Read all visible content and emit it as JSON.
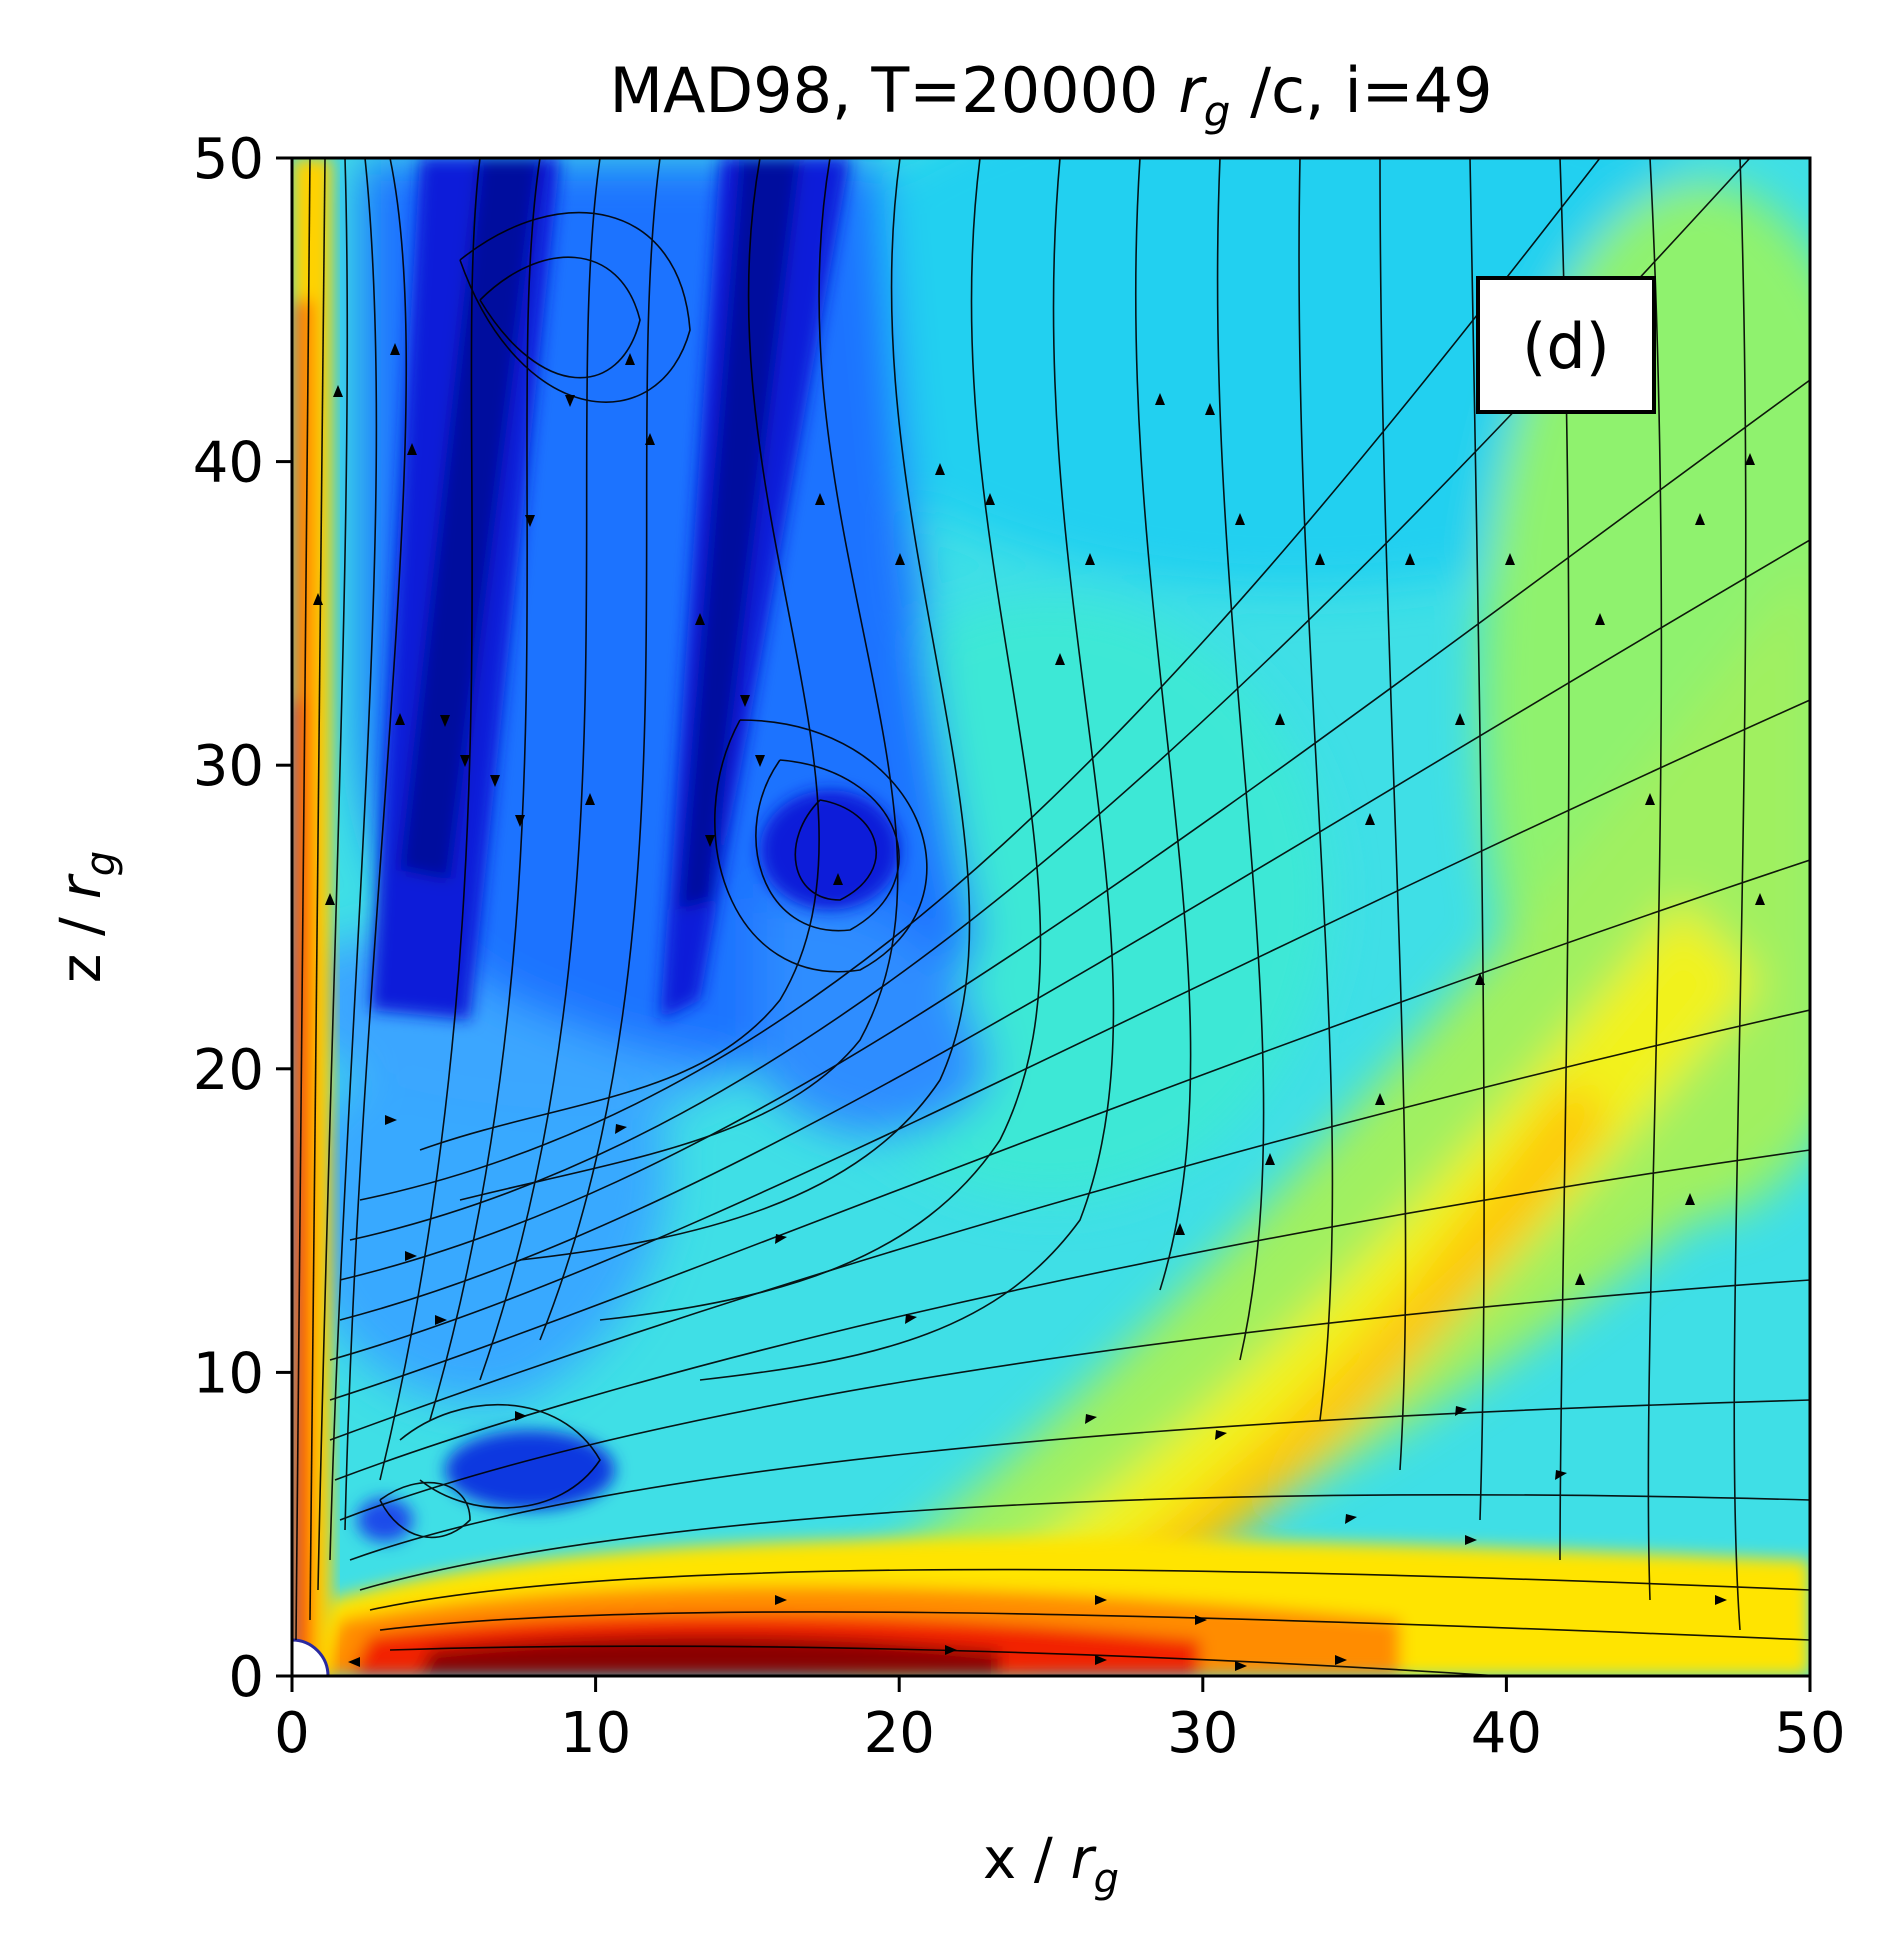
{
  "chart_data": {
    "type": "heatmap",
    "title": "MAD98, T=20000 r_g /c, i=49",
    "title_parts": {
      "prefix": "MAD98, T=20000 ",
      "var": "r",
      "sub": "g",
      "suffix": " /c, i=49"
    },
    "xlabel": "x / r_g",
    "ylabel": "z / r_g",
    "xlabel_parts": {
      "prefix": "x / ",
      "var": "r",
      "sub": "g"
    },
    "ylabel_parts": {
      "prefix": "z / ",
      "var": "r",
      "sub": "g"
    },
    "xlim": [
      0,
      50
    ],
    "ylim": [
      0,
      50
    ],
    "xticks": [
      0,
      10,
      20,
      30,
      40,
      50
    ],
    "yticks": [
      0,
      10,
      20,
      30,
      40,
      50
    ],
    "xtick_labels": [
      "0",
      "10",
      "20",
      "30",
      "40",
      "50"
    ],
    "ytick_labels": [
      "0",
      "10",
      "20",
      "30",
      "40",
      "50"
    ],
    "panel_label": "(d)",
    "panel_label_position": "top-right",
    "colormap": "jet",
    "overlay": "streamlines with arrows",
    "grid": false,
    "legend": "none",
    "features": [
      {
        "name": "equatorial-outflow",
        "x": [
          4,
          40
        ],
        "z": [
          0,
          3
        ],
        "level": "high"
      },
      {
        "name": "diagonal-outflow-band",
        "x": [
          22,
          50
        ],
        "z": [
          4,
          28
        ],
        "level": "medium-high"
      },
      {
        "name": "axis-jet",
        "x": [
          0,
          2
        ],
        "z": [
          0,
          50
        ],
        "level": "high"
      },
      {
        "name": "low-density-band-1",
        "x": [
          4,
          9
        ],
        "z": [
          22,
          50
        ],
        "level": "low"
      },
      {
        "name": "low-density-band-2",
        "x": [
          14,
          19
        ],
        "z": [
          22,
          50
        ],
        "level": "low"
      },
      {
        "name": "inner-vortex",
        "x": [
          6,
          10
        ],
        "z": [
          6,
          8
        ],
        "level": "low"
      }
    ]
  },
  "colors": {
    "jet_dark_red": "#800000",
    "jet_red": "#ff0000",
    "jet_orange": "#ff8000",
    "jet_yellow": "#ffff00",
    "jet_green": "#80ff80",
    "jet_cyan": "#00ffff",
    "jet_blue": "#0080ff",
    "jet_dark_blue": "#00008f"
  }
}
